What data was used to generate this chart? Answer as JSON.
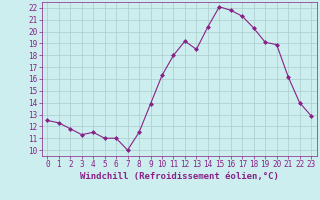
{
  "x": [
    0,
    1,
    2,
    3,
    4,
    5,
    6,
    7,
    8,
    9,
    10,
    11,
    12,
    13,
    14,
    15,
    16,
    17,
    18,
    19,
    20,
    21,
    22,
    23
  ],
  "y": [
    12.5,
    12.3,
    11.8,
    11.3,
    11.5,
    11.0,
    11.0,
    10.0,
    11.5,
    13.9,
    16.3,
    18.0,
    19.2,
    18.5,
    20.4,
    22.1,
    21.8,
    21.3,
    20.3,
    19.1,
    18.9,
    16.2,
    14.0,
    12.9
  ],
  "xlabel": "Windchill (Refroidissement éolien,°C)",
  "xlim": [
    -0.5,
    23.5
  ],
  "ylim": [
    9.5,
    22.5
  ],
  "yticks": [
    10,
    11,
    12,
    13,
    14,
    15,
    16,
    17,
    18,
    19,
    20,
    21,
    22
  ],
  "xticks": [
    0,
    1,
    2,
    3,
    4,
    5,
    6,
    7,
    8,
    9,
    10,
    11,
    12,
    13,
    14,
    15,
    16,
    17,
    18,
    19,
    20,
    21,
    22,
    23
  ],
  "line_color": "#882288",
  "marker": "D",
  "marker_size": 2.0,
  "bg_color": "#cceeee",
  "grid_color": "#aacccc",
  "tick_color": "#882288",
  "label_color": "#882288",
  "xlabel_fontsize": 6.5,
  "tick_fontsize": 5.5
}
